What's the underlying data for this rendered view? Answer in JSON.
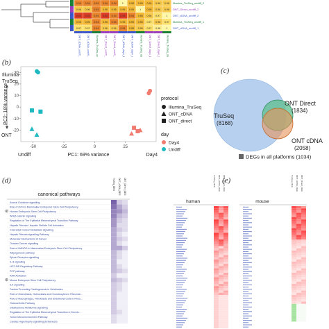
{
  "panel_a": {
    "row_labels": [
      "Illumina_TruSeq_undiff_2",
      "ONT_Direct_undiff_2",
      "ONT_cDNA_undiff_2",
      "Illumina_TruSeq_undiff_1",
      "ONT_cDNA_undiff_1"
    ],
    "row_colors": [
      "#1a7f37",
      "#9b3fbf",
      "#3b57c9",
      "#1a7f37",
      "#3b57c9"
    ],
    "col_labels": [
      "ONT_cDNA_undiff_1",
      "ONT_cDNA_undiff_2",
      "Illumina_TruSeq_undiff_1",
      "ONT_Direct_undiff_1",
      "ONT_Direct_undiff_2",
      "ONT_cDNA_day4_1",
      "ONT_cDNA_day4_2",
      "Illumina_TruSeq_day4_1",
      "ONT_Direct_day4_1",
      "ONT_Direct_day4_2",
      "Illumina_TruSeq_day4_2"
    ],
    "col_colors": [
      "#3b57c9",
      "#3b57c9",
      "#1a7f37",
      "#9b3fbf",
      "#9b3fbf",
      "#3b57c9",
      "#3b57c9",
      "#1a7f37",
      "#9b3fbf",
      "#9b3fbf",
      "#1a7f37"
    ],
    "cells": [
      [
        "0.94",
        "0.94",
        "0.94",
        "0.94",
        "0.94",
        "1",
        "0.95",
        "0.95",
        "0.95",
        "0.96",
        "0.96"
      ],
      [
        "0.96",
        "0.96",
        "0.94",
        "0.95",
        "0.95",
        "0.95",
        "0.95",
        "1",
        "0.95",
        "0.96",
        "0.96"
      ],
      [
        "0.93",
        "0.93",
        "0.94",
        "0.93",
        "0.94",
        "0.93",
        "0.94",
        "0.95",
        "0.96",
        "0.97",
        "1"
      ],
      [
        "0.95",
        "0.95",
        "0.94",
        "0.95",
        "0.94",
        "0.95",
        "0.95",
        "0.95",
        "0.97",
        "0.96",
        "0.97"
      ],
      [
        "0.97",
        "0.97",
        "0.94",
        "0.96",
        "0.96",
        "0.94",
        "0.95",
        "0.96",
        "0.97",
        "0.98",
        "1"
      ]
    ],
    "cell_colors": [
      [
        "#e8832a",
        "#e8832a",
        "#e8832a",
        "#e8832a",
        "#e8832a",
        "#fff7a8",
        "#f2b733",
        "#f2b733",
        "#f2b733",
        "#f6c94a",
        "#f6c94a"
      ],
      [
        "#f6c94a",
        "#f6c94a",
        "#e8832a",
        "#f2b733",
        "#f2b733",
        "#f2b733",
        "#f2b733",
        "#fff7a8",
        "#f2b733",
        "#f6c94a",
        "#f6c94a"
      ],
      [
        "#dc3b24",
        "#dc3b24",
        "#e8832a",
        "#dc3b24",
        "#e8832a",
        "#dc3b24",
        "#e8832a",
        "#f2b733",
        "#f6c94a",
        "#fbe06a",
        "#fff7a8"
      ],
      [
        "#f2b733",
        "#f2b733",
        "#e8832a",
        "#f2b733",
        "#e8832a",
        "#f2b733",
        "#f2b733",
        "#f2b733",
        "#fbe06a",
        "#f6c94a",
        "#fbe06a"
      ],
      [
        "#fbe06a",
        "#fbe06a",
        "#e8832a",
        "#f6c94a",
        "#f6c94a",
        "#e8832a",
        "#f2b733",
        "#f6c94a",
        "#fbe06a",
        "#fdee8f",
        "#fff7a8"
      ]
    ]
  },
  "panel_b": {
    "label": "(b)",
    "chart_data": {
      "type": "scatter",
      "xlabel": "PC1: 69% variance",
      "ylabel": "PC2: 18% variance",
      "xlim": [
        -60,
        50
      ],
      "ylim": [
        -30,
        35
      ],
      "xticks": [
        -50,
        -25,
        0,
        25
      ],
      "yticks": [
        -20,
        -10,
        0,
        10,
        20,
        30
      ],
      "left_top_annotation": "Illumina-TruSeq",
      "left_bottom_annotation": "ONT",
      "bottom_left_annotation": "Undiff",
      "bottom_right_annotation": "Day4",
      "points": [
        {
          "x": -47,
          "y": 31,
          "protocol": "Illumina_TruSeq",
          "day": "Undiff"
        },
        {
          "x": -46,
          "y": 30,
          "protocol": "Illumina_TruSeq",
          "day": "Undiff"
        },
        {
          "x": 45,
          "y": 14,
          "protocol": "Illumina_TruSeq",
          "day": "Day4"
        },
        {
          "x": 44,
          "y": 12,
          "protocol": "Illumina_TruSeq",
          "day": "Day4"
        },
        {
          "x": -51,
          "y": -19,
          "protocol": "ONT_cDNA",
          "day": "Undiff"
        },
        {
          "x": -47,
          "y": -24,
          "protocol": "ONT_cDNA",
          "day": "Undiff"
        },
        {
          "x": 30,
          "y": -23,
          "protocol": "ONT_cDNA",
          "day": "Day4"
        },
        {
          "x": 37,
          "y": -20,
          "protocol": "ONT_cDNA",
          "day": "Day4"
        },
        {
          "x": -51,
          "y": -3,
          "protocol": "ONT_direct",
          "day": "Undiff"
        },
        {
          "x": -44,
          "y": -4,
          "protocol": "ONT_direct",
          "day": "Undiff"
        },
        {
          "x": 32,
          "y": -18,
          "protocol": "ONT_direct",
          "day": "Day4"
        },
        {
          "x": 35,
          "y": -21,
          "protocol": "ONT_direct",
          "day": "Day4"
        }
      ],
      "legend": {
        "protocol_title": "protocol",
        "protocol_items": [
          "Illumina_TruSeq",
          "ONT_cDNA",
          "ONT_direct"
        ],
        "day_title": "day",
        "day_items": [
          "Day4",
          "Undiff"
        ],
        "day_colors": [
          "#f07b6f",
          "#1fb9c0"
        ]
      }
    }
  },
  "panel_c": {
    "label": "(c)",
    "truseq_label": "TruSeq",
    "truseq_count": "(8168)",
    "ont_direct_label": "ONT Direct",
    "ont_direct_count": "(1834)",
    "ont_cdna_label": "ONT cDNA",
    "ont_cdna_count": "(2058)",
    "legend_text": "DEGs in all platforms (1034)",
    "colors": {
      "truseq": "#aac8ec",
      "direct": "#5fbf8f",
      "cdna": "#e8935a",
      "overlap": "#666666"
    }
  },
  "panel_d": {
    "label": "(d)",
    "title": "canonical pathways",
    "col_labels": [
      "TruSeq_DEG",
      "ONT_cDNA_DEG",
      "ONT_Direct_DEG"
    ],
    "pathways": [
      "Axonal Guidance signalling",
      "Role of Oct4 in Mammalian Embryonic Stem Cell Pluripotency",
      "Human Embryonic Stem Cell Pluripotency",
      "Wnt/β-catenin signalling",
      "Regulation of The Epithelial Mesenchymal Transition Pathway",
      "Hepatic Fibrosis / Hepatic Stellate Cell Activation",
      "Colorectal Cancer Metastasis signalling",
      "Hepatic Fibrosis signalling Pathway",
      "Molecular Mechanisms of Cancer",
      "Ovarian Cancer signalling",
      "Role of NANOG in Mammalian Embryonic Stem Cell Pluripotency",
      "Adipogenesis pathway",
      "Ephrin Receptor signalling",
      "IL-8 signalling",
      "HOT AIR Regulatory Pathway",
      "PCP pathway",
      "RAR Activation",
      "Mouse Embryonic Stem Cell Pluripotency",
      "ILK signalling",
      "Factors Promoting Cardiogenesis in Vertebrates",
      "Role of Osteoblasts, Osteoclasts and Chondrocytes in Rheumat...",
      "Role of Macrophages, Fibroblasts and Endothelial Cells in Rheu...",
      "Osteoarthritis Pathway",
      "Glioblastoma Multiforme signalling",
      "Regulation of The Epithelial Mesenchymal Transition in Develo...",
      "Tumor Microenvironment Pathway",
      "Cardiac Hypertrophy signalling (Enhanced)"
    ],
    "marked_rows": [
      2,
      17
    ],
    "values": [
      [
        0.9,
        0.3,
        0.2
      ],
      [
        0.8,
        0.5,
        0.3
      ],
      [
        0.7,
        0.6,
        0.4
      ],
      [
        0.7,
        0.4,
        0.3
      ],
      [
        0.6,
        0.3,
        0.2
      ],
      [
        0.6,
        0.2,
        0.2
      ],
      [
        0.5,
        0.3,
        0.2
      ],
      [
        0.5,
        0.2,
        0.1
      ],
      [
        0.5,
        0.3,
        0.2
      ],
      [
        0.5,
        0.2,
        0.1
      ],
      [
        0.5,
        0.5,
        0.3
      ],
      [
        0.4,
        0.2,
        0.1
      ],
      [
        0.4,
        0.2,
        0.1
      ],
      [
        0.4,
        0.1,
        0.1
      ],
      [
        0.4,
        0.2,
        0.1
      ],
      [
        0.4,
        0.3,
        0.2
      ],
      [
        0.3,
        0.1,
        0.1
      ],
      [
        0.4,
        0.3,
        0.2
      ],
      [
        0.3,
        0.2,
        0.1
      ],
      [
        0.3,
        0.2,
        0.1
      ],
      [
        0.3,
        0.1,
        0.1
      ],
      [
        0.3,
        0.1,
        0.1
      ],
      [
        0.3,
        0.1,
        0.1
      ],
      [
        0.3,
        0.1,
        0.1
      ],
      [
        0.3,
        0.2,
        0.1
      ],
      [
        0.2,
        0.1,
        0.1
      ],
      [
        0.2,
        0.1,
        0.1
      ]
    ]
  },
  "panel_e": {
    "label": "(e)",
    "human_title": "human",
    "mouse_title": "mouse",
    "col_labels": [
      "TruSeq_DEG",
      "ONT_cDNA_DEG",
      "ONT_Direct_DEG"
    ]
  }
}
